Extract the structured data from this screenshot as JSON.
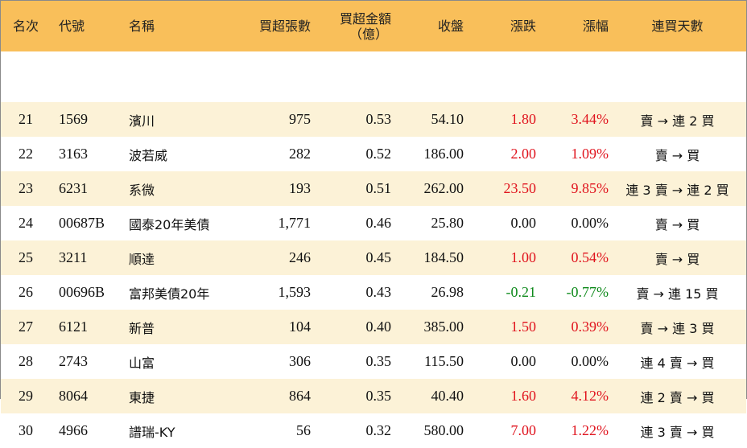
{
  "headers": {
    "rank": "名次",
    "code": "代號",
    "name": "名稱",
    "net_buy_lots": "買超張數",
    "net_buy_amount_line1": "買超金額",
    "net_buy_amount_line2": "（億）",
    "close": "收盤",
    "change": "漲跌",
    "change_pct": "漲幅",
    "streak": "連買天數"
  },
  "colors": {
    "header_bg": "#f9bf5a",
    "odd_row_bg": "#fcf2d7",
    "even_row_bg": "#ffffff",
    "up": "#e0141e",
    "down": "#0f8a1c",
    "flat": "#111111"
  },
  "rows": [
    {
      "rank": "21",
      "code": "1569",
      "name": "濱川",
      "lots": "975",
      "amount": "0.53",
      "close": "54.10",
      "change": "1.80",
      "pct": "3.44%",
      "dir": "up",
      "streak": "賣 → 連 2 買"
    },
    {
      "rank": "22",
      "code": "3163",
      "name": "波若威",
      "lots": "282",
      "amount": "0.52",
      "close": "186.00",
      "change": "2.00",
      "pct": "1.09%",
      "dir": "up",
      "streak": "賣 → 買"
    },
    {
      "rank": "23",
      "code": "6231",
      "name": "系微",
      "lots": "193",
      "amount": "0.51",
      "close": "262.00",
      "change": "23.50",
      "pct": "9.85%",
      "dir": "up",
      "streak": "連 3 賣 → 連 2 買"
    },
    {
      "rank": "24",
      "code": "00687B",
      "name": "國泰20年美債",
      "lots": "1,771",
      "amount": "0.46",
      "close": "25.80",
      "change": "0.00",
      "pct": "0.00%",
      "dir": "flat",
      "streak": "賣 → 買"
    },
    {
      "rank": "25",
      "code": "3211",
      "name": "順達",
      "lots": "246",
      "amount": "0.45",
      "close": "184.50",
      "change": "1.00",
      "pct": "0.54%",
      "dir": "up",
      "streak": "賣 → 買"
    },
    {
      "rank": "26",
      "code": "00696B",
      "name": "富邦美債20年",
      "lots": "1,593",
      "amount": "0.43",
      "close": "26.98",
      "change": "-0.21",
      "pct": "-0.77%",
      "dir": "down",
      "streak": "賣 → 連 15 買"
    },
    {
      "rank": "27",
      "code": "6121",
      "name": "新普",
      "lots": "104",
      "amount": "0.40",
      "close": "385.00",
      "change": "1.50",
      "pct": "0.39%",
      "dir": "up",
      "streak": "賣 → 連 3 買"
    },
    {
      "rank": "28",
      "code": "2743",
      "name": "山富",
      "lots": "306",
      "amount": "0.35",
      "close": "115.50",
      "change": "0.00",
      "pct": "0.00%",
      "dir": "flat",
      "streak": "連 4 賣 → 買"
    },
    {
      "rank": "29",
      "code": "8064",
      "name": "東捷",
      "lots": "864",
      "amount": "0.35",
      "close": "40.40",
      "change": "1.60",
      "pct": "4.12%",
      "dir": "up",
      "streak": "連 2 賣 → 買"
    },
    {
      "rank": "30",
      "code": "4966",
      "name": "譜瑞-KY",
      "lots": "56",
      "amount": "0.32",
      "close": "580.00",
      "change": "7.00",
      "pct": "1.22%",
      "dir": "up",
      "streak": "連 3 賣 → 買"
    }
  ]
}
